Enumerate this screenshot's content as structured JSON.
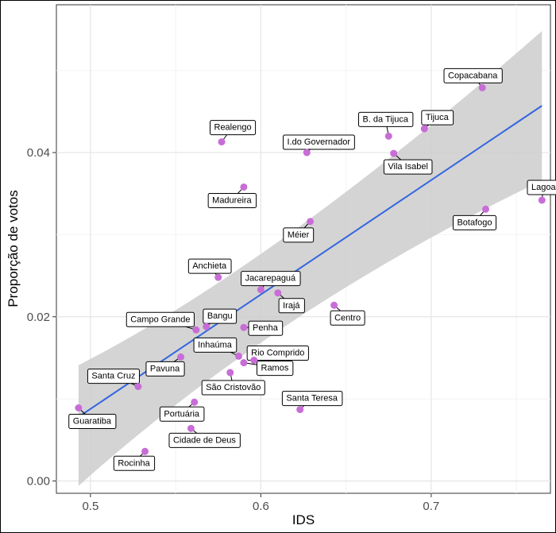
{
  "chart_data": {
    "type": "scatter",
    "xlabel": "IDS",
    "ylabel": "Proporção de votos",
    "xlim": [
      0.48,
      0.77
    ],
    "ylim": [
      -0.0015,
      0.058
    ],
    "x_ticks": [
      0.5,
      0.6,
      0.7
    ],
    "x_tick_labels": [
      "0.5",
      "0.6",
      "0.7"
    ],
    "y_ticks": [
      0.0,
      0.02,
      0.04
    ],
    "y_tick_labels": [
      "0.00",
      "0.02",
      "0.04"
    ],
    "grid": true,
    "colors": {
      "point": "#c86dd7",
      "line": "#3366e0",
      "ribbon": "#cccccc",
      "panel": "#ffffff",
      "grid_major": "#e5e5e5",
      "grid_minor": "#f2f2f2"
    },
    "regression": {
      "x": [
        0.493,
        0.765
      ],
      "y": [
        0.0078,
        0.0457
      ],
      "ci_lower": [
        -0.0006,
        0.0366
      ],
      "ci_upper": [
        0.0141,
        0.0548
      ]
    },
    "points": [
      {
        "name": "Copacabana",
        "x": 0.73,
        "y": 0.0479
      },
      {
        "name": "Tijuca",
        "x": 0.696,
        "y": 0.0429
      },
      {
        "name": "B. da Tijuca",
        "x": 0.675,
        "y": 0.042
      },
      {
        "name": "Vila Isabel",
        "x": 0.678,
        "y": 0.0399
      },
      {
        "name": "Lagoa",
        "x": 0.765,
        "y": 0.0342
      },
      {
        "name": "Botafogo",
        "x": 0.732,
        "y": 0.0331
      },
      {
        "name": "Realengo",
        "x": 0.577,
        "y": 0.0413
      },
      {
        "name": "I.do Governador",
        "x": 0.627,
        "y": 0.04
      },
      {
        "name": "Madureira",
        "x": 0.59,
        "y": 0.0358
      },
      {
        "name": "Méier",
        "x": 0.629,
        "y": 0.0316
      },
      {
        "name": "Anchieta",
        "x": 0.575,
        "y": 0.0248
      },
      {
        "name": "Jacarepaguá",
        "x": 0.6,
        "y": 0.0233
      },
      {
        "name": "Irajá",
        "x": 0.61,
        "y": 0.0229
      },
      {
        "name": "Centro",
        "x": 0.643,
        "y": 0.0214
      },
      {
        "name": "Campo Grande",
        "x": 0.562,
        "y": 0.0184
      },
      {
        "name": "Bangu",
        "x": 0.568,
        "y": 0.0188
      },
      {
        "name": "Penha",
        "x": 0.59,
        "y": 0.0187
      },
      {
        "name": "Inhaúma",
        "x": 0.587,
        "y": 0.0152
      },
      {
        "name": "Rio Comprido",
        "x": 0.596,
        "y": 0.0147
      },
      {
        "name": "Ramos",
        "x": 0.59,
        "y": 0.0144
      },
      {
        "name": "Pavuna",
        "x": 0.553,
        "y": 0.0151
      },
      {
        "name": "Santa Cruz",
        "x": 0.528,
        "y": 0.0115
      },
      {
        "name": "São Cristovão",
        "x": 0.582,
        "y": 0.0132
      },
      {
        "name": "Guaratiba",
        "x": 0.493,
        "y": 0.0089
      },
      {
        "name": "Santa Teresa",
        "x": 0.623,
        "y": 0.0087
      },
      {
        "name": "Portuária",
        "x": 0.561,
        "y": 0.0096
      },
      {
        "name": "Cidade de Deus",
        "x": 0.559,
        "y": 0.0064
      },
      {
        "name": "Rocinha",
        "x": 0.532,
        "y": 0.0036
      }
    ]
  }
}
